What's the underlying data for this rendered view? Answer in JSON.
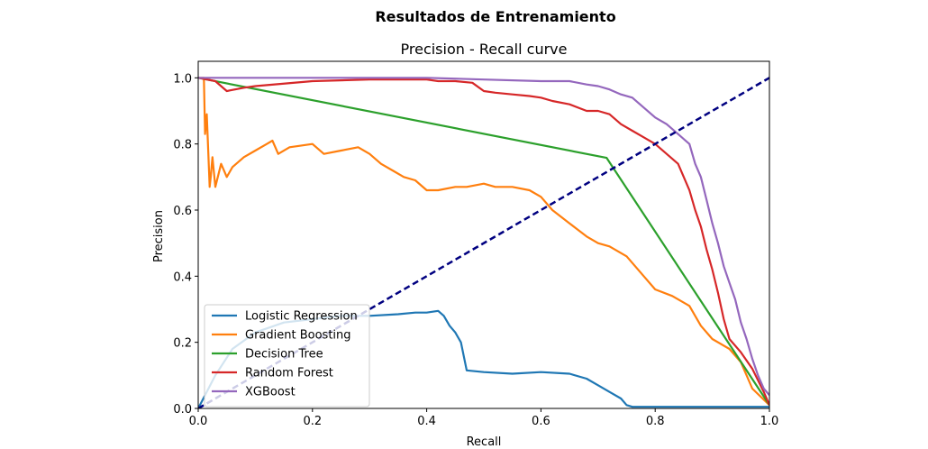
{
  "chart_data": {
    "type": "line",
    "suptitle": "Resultados de Entrenamiento",
    "title": "Precision - Recall curve",
    "xlabel": "Recall",
    "ylabel": "Precision",
    "xlim": [
      0,
      1
    ],
    "ylim": [
      0,
      1.05
    ],
    "xticks": [
      0.0,
      0.2,
      0.4,
      0.6,
      0.8,
      1.0
    ],
    "yticks": [
      0.0,
      0.2,
      0.4,
      0.6,
      0.8,
      1.0
    ],
    "xtick_labels": [
      "0.0",
      "0.2",
      "0.4",
      "0.6",
      "0.8",
      "1.0"
    ],
    "ytick_labels": [
      "0.0",
      "0.2",
      "0.4",
      "0.6",
      "0.8",
      "1.0"
    ],
    "grid": false,
    "legend_position": "lower-left",
    "series": [
      {
        "name": "Logistic Regression",
        "color": "#1f77b4",
        "x": [
          0.0,
          0.03,
          0.06,
          0.1,
          0.15,
          0.2,
          0.25,
          0.3,
          0.35,
          0.38,
          0.4,
          0.42,
          0.43,
          0.44,
          0.45,
          0.46,
          0.47,
          0.5,
          0.55,
          0.6,
          0.65,
          0.68,
          0.7,
          0.72,
          0.74,
          0.75,
          0.76,
          0.8,
          0.9,
          1.0
        ],
        "y": [
          0.0,
          0.1,
          0.18,
          0.23,
          0.26,
          0.27,
          0.28,
          0.28,
          0.285,
          0.29,
          0.29,
          0.295,
          0.28,
          0.25,
          0.23,
          0.2,
          0.115,
          0.11,
          0.105,
          0.11,
          0.105,
          0.09,
          0.07,
          0.05,
          0.03,
          0.01,
          0.005,
          0.005,
          0.005,
          0.005
        ]
      },
      {
        "name": "Gradient Boosting",
        "color": "#ff7f0e",
        "x": [
          0.0,
          0.01,
          0.012,
          0.015,
          0.02,
          0.022,
          0.025,
          0.03,
          0.04,
          0.05,
          0.06,
          0.08,
          0.1,
          0.12,
          0.13,
          0.14,
          0.16,
          0.2,
          0.22,
          0.25,
          0.28,
          0.3,
          0.32,
          0.34,
          0.36,
          0.38,
          0.4,
          0.42,
          0.45,
          0.47,
          0.5,
          0.52,
          0.55,
          0.58,
          0.6,
          0.62,
          0.65,
          0.68,
          0.7,
          0.72,
          0.75,
          0.78,
          0.8,
          0.83,
          0.86,
          0.88,
          0.9,
          0.93,
          0.95,
          0.97,
          1.0
        ],
        "y": [
          1.0,
          1.0,
          0.83,
          0.89,
          0.67,
          0.7,
          0.76,
          0.67,
          0.74,
          0.7,
          0.73,
          0.76,
          0.78,
          0.8,
          0.81,
          0.77,
          0.79,
          0.8,
          0.77,
          0.78,
          0.79,
          0.77,
          0.74,
          0.72,
          0.7,
          0.69,
          0.66,
          0.66,
          0.67,
          0.67,
          0.68,
          0.67,
          0.67,
          0.66,
          0.64,
          0.6,
          0.56,
          0.52,
          0.5,
          0.49,
          0.46,
          0.4,
          0.36,
          0.34,
          0.31,
          0.25,
          0.21,
          0.18,
          0.14,
          0.06,
          0.01
        ]
      },
      {
        "name": "Decision Tree",
        "color": "#2ca02c",
        "x": [
          0.0,
          0.715,
          1.0
        ],
        "y": [
          1.0,
          0.758,
          0.01
        ]
      },
      {
        "name": "Random Forest",
        "color": "#d62728",
        "x": [
          0.0,
          0.03,
          0.05,
          0.08,
          0.1,
          0.2,
          0.3,
          0.4,
          0.42,
          0.45,
          0.48,
          0.5,
          0.52,
          0.55,
          0.58,
          0.6,
          0.62,
          0.65,
          0.68,
          0.7,
          0.72,
          0.74,
          0.76,
          0.78,
          0.8,
          0.82,
          0.84,
          0.85,
          0.86,
          0.87,
          0.88,
          0.89,
          0.9,
          0.91,
          0.92,
          0.93,
          0.95,
          0.97,
          0.99,
          1.0
        ],
        "y": [
          1.0,
          0.99,
          0.96,
          0.97,
          0.975,
          0.99,
          0.995,
          0.995,
          0.99,
          0.99,
          0.985,
          0.96,
          0.955,
          0.95,
          0.945,
          0.94,
          0.93,
          0.92,
          0.9,
          0.9,
          0.89,
          0.86,
          0.84,
          0.82,
          0.8,
          0.77,
          0.74,
          0.7,
          0.66,
          0.6,
          0.55,
          0.48,
          0.42,
          0.35,
          0.27,
          0.21,
          0.17,
          0.12,
          0.05,
          0.01
        ]
      },
      {
        "name": "XGBoost",
        "color": "#9467bd",
        "x": [
          0.0,
          0.2,
          0.4,
          0.5,
          0.6,
          0.65,
          0.68,
          0.7,
          0.72,
          0.74,
          0.76,
          0.78,
          0.8,
          0.82,
          0.84,
          0.86,
          0.87,
          0.88,
          0.89,
          0.9,
          0.91,
          0.92,
          0.93,
          0.94,
          0.95,
          0.96,
          0.97,
          0.98,
          0.99,
          1.0
        ],
        "y": [
          1.0,
          1.0,
          1.0,
          0.995,
          0.99,
          0.99,
          0.98,
          0.975,
          0.965,
          0.95,
          0.94,
          0.91,
          0.88,
          0.86,
          0.83,
          0.8,
          0.74,
          0.7,
          0.63,
          0.56,
          0.5,
          0.43,
          0.38,
          0.33,
          0.26,
          0.21,
          0.15,
          0.1,
          0.06,
          0.04
        ]
      },
      {
        "name": "",
        "color": "#000080",
        "dashed": true,
        "x": [
          0.0,
          1.0
        ],
        "y": [
          0.0,
          1.0
        ]
      }
    ]
  }
}
